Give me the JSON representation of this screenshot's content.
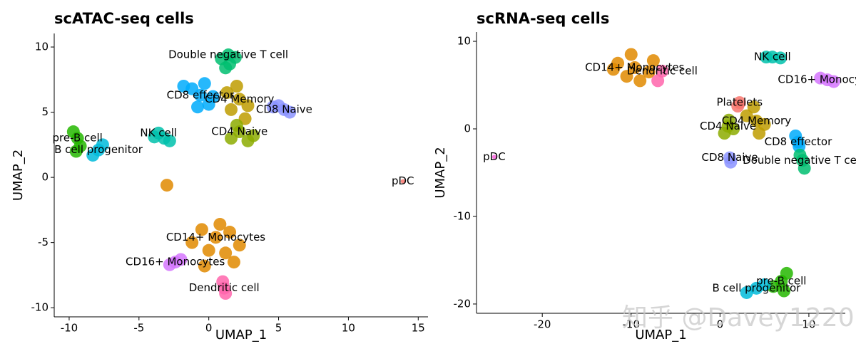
{
  "chart_data": [
    {
      "type": "scatter",
      "title": "scATAC-seq cells",
      "xlabel": "UMAP_1",
      "ylabel": "UMAP_2",
      "xlim": [
        -11.07,
        15.7
      ],
      "ylim": [
        -10.7,
        11.04
      ],
      "xticks": [
        -10,
        -5,
        0,
        5,
        10,
        15
      ],
      "yticks": [
        -10,
        -5,
        0,
        5,
        10
      ],
      "series": [
        {
          "name": "CD14+ Monocytes",
          "color": "#E18A00",
          "x": [
            0.5,
            -0.5,
            1.5,
            0.0,
            1.2,
            -1.2,
            2.2,
            0.8,
            -0.3,
            1.8,
            -3.0
          ],
          "y": [
            -4.6,
            -4.0,
            -4.2,
            -5.6,
            -5.8,
            -5.0,
            -5.2,
            -3.6,
            -6.8,
            -6.5,
            -0.6
          ]
        },
        {
          "name": "Double negative T cell",
          "color": "#00BE70",
          "x": [
            1.4,
            0.9,
            1.9,
            1.5,
            1.2
          ],
          "y": [
            9.4,
            9.1,
            9.2,
            8.7,
            8.4
          ]
        },
        {
          "name": "CD8 effector",
          "color": "#00ACFC",
          "x": [
            -0.6,
            -1.2,
            0.0,
            -0.3,
            -1.8,
            0.3,
            -0.8
          ],
          "y": [
            6.3,
            6.8,
            5.6,
            7.2,
            7.0,
            6.2,
            5.4
          ]
        },
        {
          "name": "CD4 Memory",
          "color": "#BE9C00",
          "x": [
            2.2,
            1.6,
            2.8,
            2.0,
            1.3,
            2.6
          ],
          "y": [
            6.0,
            5.2,
            5.5,
            7.0,
            6.5,
            4.5
          ]
        },
        {
          "name": "CD4 Naive",
          "color": "#8CAB00",
          "x": [
            2.2,
            1.6,
            2.8,
            2.0,
            3.2
          ],
          "y": [
            3.5,
            3.0,
            2.8,
            4.0,
            3.2
          ]
        },
        {
          "name": "CD8 Naive",
          "color": "#8B93FF",
          "x": [
            5.4,
            5.0,
            5.8,
            4.6
          ],
          "y": [
            5.2,
            5.5,
            5.0,
            5.4
          ]
        },
        {
          "name": "pre-B cell",
          "color": "#24B700",
          "x": [
            -9.4,
            -9.7,
            -9.2,
            -9.5
          ],
          "y": [
            3.0,
            3.5,
            2.4,
            2.0
          ]
        },
        {
          "name": "B cell progenitor",
          "color": "#00BBDA",
          "x": [
            -7.9,
            -8.3,
            -7.6
          ],
          "y": [
            2.1,
            1.7,
            2.5
          ]
        },
        {
          "name": "NK cell",
          "color": "#00C1AB",
          "x": [
            -3.6,
            -3.2,
            -3.9,
            -2.8
          ],
          "y": [
            3.4,
            3.0,
            3.1,
            2.8
          ]
        },
        {
          "name": "CD16+ Monocytes",
          "color": "#D575FE",
          "x": [
            -2.4,
            -2.8,
            -2.0
          ],
          "y": [
            -6.5,
            -6.7,
            -6.3
          ]
        },
        {
          "name": "Dendritic cell",
          "color": "#FF65AC",
          "x": [
            1.1,
            1.0,
            1.2
          ],
          "y": [
            -8.5,
            -8.0,
            -8.9
          ]
        },
        {
          "name": "pDC",
          "color": "#F8766D",
          "x": [
            13.9
          ],
          "y": [
            -0.3
          ]
        }
      ]
    },
    {
      "type": "scatter",
      "title": "scRNA-seq cells",
      "xlabel": "UMAP_1",
      "ylabel": "UMAP_2",
      "xlim": [
        -27.4,
        14.1
      ],
      "ylim": [
        -21.06,
        11.06
      ],
      "xticks": [
        -20,
        -10,
        0,
        10
      ],
      "yticks": [
        -20,
        -10,
        0,
        10
      ],
      "series": [
        {
          "name": "CD14+ Monocytes",
          "color": "#E18A00",
          "x": [
            -9.6,
            -11.5,
            -8.0,
            -10.0,
            -7.5,
            -12.0,
            -9.0,
            -10.5
          ],
          "y": [
            7.0,
            7.5,
            6.5,
            8.5,
            7.8,
            6.8,
            5.5,
            6.0
          ]
        },
        {
          "name": "Dendritic cell",
          "color": "#FF65AC",
          "x": [
            -6.5,
            -7.0
          ],
          "y": [
            6.6,
            5.5
          ]
        },
        {
          "name": "NK cell",
          "color": "#00C1AB",
          "x": [
            5.9,
            6.8,
            5.2
          ],
          "y": [
            8.2,
            8.1,
            8.2
          ]
        },
        {
          "name": "CD16+ Monocytes",
          "color": "#D575FE",
          "x": [
            12.1,
            11.3,
            12.8
          ],
          "y": [
            5.6,
            5.8,
            5.4
          ]
        },
        {
          "name": "Platelets",
          "color": "#F8766D",
          "x": [
            2.2,
            2.0
          ],
          "y": [
            3.0,
            2.6
          ]
        },
        {
          "name": "CD4 Memory",
          "color": "#BE9C00",
          "x": [
            4.1,
            3.0,
            5.0,
            3.8,
            4.4
          ],
          "y": [
            0.9,
            1.5,
            0.5,
            2.5,
            -0.5
          ]
        },
        {
          "name": "CD4 Naive",
          "color": "#8CAB00",
          "x": [
            0.9,
            0.5,
            1.5,
            1.0
          ],
          "y": [
            0.3,
            -0.5,
            0.0,
            1.0
          ]
        },
        {
          "name": "CD8 Naive",
          "color": "#8B93FF",
          "x": [
            1.1,
            1.2
          ],
          "y": [
            -3.3,
            -3.8
          ]
        },
        {
          "name": "CD8 effector",
          "color": "#00ACFC",
          "x": [
            8.8,
            8.5,
            8.9
          ],
          "y": [
            -1.5,
            -0.8,
            -2.0
          ]
        },
        {
          "name": "Double negative T cell",
          "color": "#00BE70",
          "x": [
            9.3,
            9.0,
            9.5
          ],
          "y": [
            -3.6,
            -3.0,
            -4.5
          ]
        },
        {
          "name": "pDC",
          "color": "#F962DD",
          "x": [
            -25.4
          ],
          "y": [
            -3.2
          ]
        },
        {
          "name": "pre-B cell",
          "color": "#24B700",
          "x": [
            6.9,
            7.5,
            6.0,
            7.2
          ],
          "y": [
            -17.4,
            -16.5,
            -18.0,
            -18.5
          ]
        },
        {
          "name": "B cell progenitor",
          "color": "#00BBDA",
          "x": [
            4.1,
            3.0,
            5.0
          ],
          "y": [
            -18.2,
            -18.7,
            -17.8
          ]
        }
      ]
    }
  ],
  "watermark": "知乎 @Davey1220"
}
